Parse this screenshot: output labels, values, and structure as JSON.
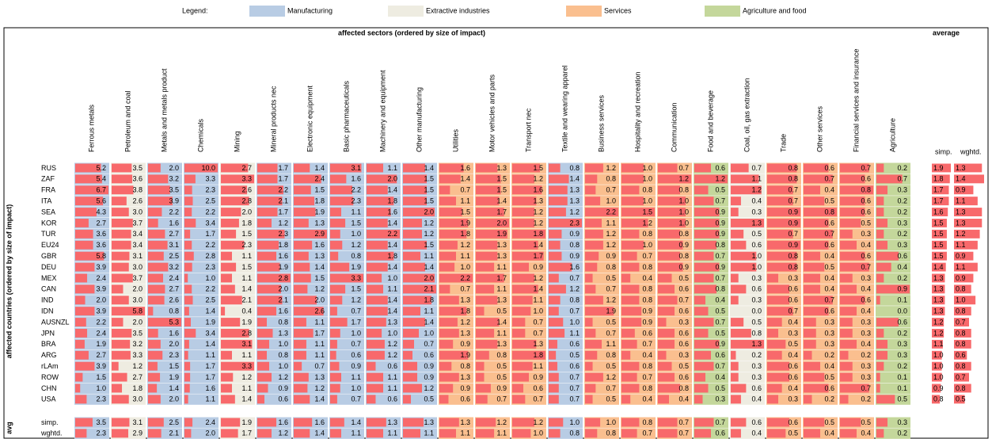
{
  "legend": {
    "title": "Legend:",
    "items": [
      {
        "label": "Manufacturing",
        "color": "#b8cce4"
      },
      {
        "label": "Extractive industries",
        "color": "#eeece1"
      },
      {
        "label": "Services",
        "color": "#fabf8f"
      },
      {
        "label": "Agriculture and food",
        "color": "#c4d79b"
      }
    ]
  },
  "header": "affected sectors (ordered by size of impact)",
  "average_header": "average",
  "row_axis_label": "affected countries (ordered by size of impact)",
  "avg_axis_label": "avg",
  "bar_color": "#f8696b",
  "columns": [
    {
      "label": "Ferrous metals",
      "color": "#b8cce4"
    },
    {
      "label": "Petroleum and coal",
      "color": "#eeece1"
    },
    {
      "label": "Metals and metals product",
      "color": "#b8cce4"
    },
    {
      "label": "Chemicals",
      "color": "#b8cce4"
    },
    {
      "label": "Mining",
      "color": "#eeece1"
    },
    {
      "label": "Mineral products nec",
      "color": "#b8cce4"
    },
    {
      "label": "Electronic equipment",
      "color": "#b8cce4"
    },
    {
      "label": "Basic pharmaceuticals",
      "color": "#b8cce4"
    },
    {
      "label": "Machinery and equipment",
      "color": "#b8cce4"
    },
    {
      "label": "Other manufacturing",
      "color": "#b8cce4"
    },
    {
      "label": "Utilities",
      "color": "#fabf8f"
    },
    {
      "label": "Motor vehicles and parts",
      "color": "#fabf8f"
    },
    {
      "label": "Transport nec",
      "color": "#fabf8f"
    },
    {
      "label": "Textile and wearing apparel",
      "color": "#b8cce4"
    },
    {
      "label": "Business services",
      "color": "#fabf8f"
    },
    {
      "label": "Hospitality and recreation",
      "color": "#fabf8f"
    },
    {
      "label": "Communication",
      "color": "#fabf8f"
    },
    {
      "label": "Food and beverage",
      "color": "#c4d79b"
    },
    {
      "label": "Coal, oil, gas extraction",
      "color": "#eeece1"
    },
    {
      "label": "Trade",
      "color": "#fabf8f"
    },
    {
      "label": "Other services",
      "color": "#fabf8f"
    },
    {
      "label": "Financial services and insurance",
      "color": "#fabf8f"
    },
    {
      "label": "Agriculture",
      "color": "#c4d79b"
    }
  ],
  "average_columns": [
    "simp.",
    "wghtd."
  ],
  "rows": [
    {
      "label": "RUS",
      "values": [
        "5.2",
        "3.5",
        "2.0",
        "10.0",
        "2.7",
        "1.7",
        "1.4",
        "3.1",
        "1.1",
        "1.4",
        "1.6",
        "1.3",
        "1.5",
        "0.8",
        "1.2",
        "1.0",
        "0.7",
        "0.6",
        "0.7",
        "0.8",
        "0.6",
        "0.7",
        "0.2"
      ],
      "average": [
        "1.9",
        "1.3"
      ]
    },
    {
      "label": "ZAF",
      "values": [
        "5.4",
        "3.6",
        "3.2",
        "3.3",
        "3.3",
        "1.7",
        "2.4",
        "1.6",
        "2.0",
        "1.5",
        "1.4",
        "1.5",
        "1.2",
        "1.4",
        "0.8",
        "1.0",
        "1.2",
        "1.2",
        "1.1",
        "0.8",
        "0.7",
        "0.6",
        "0.7"
      ],
      "average": [
        "1.8",
        "1.4"
      ]
    },
    {
      "label": "FRA",
      "values": [
        "6.7",
        "3.8",
        "3.5",
        "2.3",
        "2.6",
        "2.2",
        "1.5",
        "2.2",
        "1.4",
        "1.5",
        "0.7",
        "1.5",
        "1.6",
        "1.3",
        "0.7",
        "0.8",
        "0.8",
        "0.5",
        "1.2",
        "0.7",
        "0.4",
        "0.8",
        "0.3"
      ],
      "average": [
        "1.7",
        "0.9"
      ]
    },
    {
      "label": "ITA",
      "values": [
        "5.6",
        "2.6",
        "3.9",
        "2.5",
        "2.8",
        "2.1",
        "1.8",
        "2.3",
        "1.8",
        "1.5",
        "1.1",
        "1.4",
        "1.3",
        "1.3",
        "1.0",
        "1.0",
        "1.0",
        "0.7",
        "0.4",
        "0.7",
        "0.5",
        "0.6",
        "0.2"
      ],
      "average": [
        "1.7",
        "1.1"
      ]
    },
    {
      "label": "SEA",
      "values": [
        "4.3",
        "3.0",
        "2.2",
        "2.2",
        "2.0",
        "1.7",
        "1.9",
        "1.1",
        "1.6",
        "2.0",
        "1.5",
        "1.7",
        "1.2",
        "1.2",
        "2.2",
        "1.5",
        "1.0",
        "0.9",
        "0.3",
        "0.9",
        "0.8",
        "0.6",
        "0.2"
      ],
      "average": [
        "1.6",
        "1.3"
      ]
    },
    {
      "label": "KOR",
      "values": [
        "2.7",
        "3.7",
        "1.6",
        "3.4",
        "1.8",
        "1.2",
        "1.3",
        "1.5",
        "1.4",
        "1.2",
        "1.9",
        "2.0",
        "1.2",
        "2.3",
        "1.1",
        "1.2",
        "1.0",
        "0.9",
        "1.3",
        "0.9",
        "0.6",
        "0.5",
        "0.3"
      ],
      "average": [
        "1.5",
        "1.3"
      ]
    },
    {
      "label": "TUR",
      "values": [
        "3.6",
        "3.4",
        "2.7",
        "1.7",
        "1.5",
        "2.3",
        "2.9",
        "1.0",
        "2.2",
        "1.2",
        "1.8",
        "1.9",
        "1.8",
        "0.9",
        "1.2",
        "0.8",
        "0.8",
        "0.9",
        "0.5",
        "0.7",
        "0.7",
        "0.3",
        "0.2"
      ],
      "average": [
        "1.5",
        "1.2"
      ]
    },
    {
      "label": "EU24",
      "values": [
        "3.6",
        "3.4",
        "3.1",
        "2.2",
        "2.3",
        "1.8",
        "1.6",
        "1.2",
        "1.4",
        "1.5",
        "1.2",
        "1.3",
        "1.4",
        "0.8",
        "1.2",
        "1.0",
        "0.9",
        "0.8",
        "0.6",
        "0.9",
        "0.6",
        "0.4",
        "0.3"
      ],
      "average": [
        "1.5",
        "1.1"
      ]
    },
    {
      "label": "GBR",
      "values": [
        "5.8",
        "3.1",
        "2.5",
        "2.8",
        "1.1",
        "1.6",
        "1.3",
        "0.8",
        "1.8",
        "1.1",
        "1.1",
        "1.3",
        "1.7",
        "0.9",
        "0.9",
        "0.7",
        "0.8",
        "0.7",
        "1.0",
        "0.8",
        "0.4",
        "0.6",
        "0.6"
      ],
      "average": [
        "1.5",
        "0.9"
      ]
    },
    {
      "label": "DEU",
      "values": [
        "3.9",
        "3.0",
        "3.2",
        "2.3",
        "1.5",
        "1.9",
        "1.4",
        "1.9",
        "1.4",
        "1.4",
        "1.0",
        "1.1",
        "0.9",
        "1.6",
        "0.8",
        "0.8",
        "0.9",
        "0.9",
        "1.0",
        "0.8",
        "0.5",
        "0.7",
        "0.4"
      ],
      "average": [
        "1.4",
        "1.1"
      ]
    },
    {
      "label": "MEX",
      "values": [
        "2.4",
        "3.7",
        "2.4",
        "1.0",
        "1.1",
        "2.8",
        "1.5",
        "3.3",
        "1.0",
        "2.0",
        "2.2",
        "1.7",
        "1.2",
        "0.7",
        "0.5",
        "0.4",
        "0.5",
        "0.7",
        "0.3",
        "0.3",
        "0.4",
        "0.3",
        "0.2"
      ],
      "average": [
        "1.3",
        "0.9"
      ]
    },
    {
      "label": "CAN",
      "values": [
        "3.9",
        "2.0",
        "2.7",
        "2.2",
        "1.4",
        "2.0",
        "1.2",
        "1.5",
        "1.1",
        "2.1",
        "0.7",
        "1.1",
        "1.4",
        "1.2",
        "0.7",
        "0.8",
        "0.6",
        "0.8",
        "0.6",
        "0.6",
        "0.4",
        "0.4",
        "0.9"
      ],
      "average": [
        "1.3",
        "0.8"
      ]
    },
    {
      "label": "IND",
      "values": [
        "2.0",
        "3.0",
        "2.6",
        "2.5",
        "2.1",
        "2.1",
        "2.0",
        "1.2",
        "1.4",
        "1.8",
        "1.3",
        "1.3",
        "1.1",
        "0.8",
        "1.2",
        "0.8",
        "0.7",
        "0.4",
        "0.3",
        "0.6",
        "0.7",
        "0.6",
        "0.1"
      ],
      "average": [
        "1.3",
        "1.0"
      ]
    },
    {
      "label": "IDN",
      "values": [
        "3.9",
        "5.8",
        "0.8",
        "1.4",
        "0.4",
        "1.6",
        "2.6",
        "0.7",
        "1.4",
        "1.1",
        "1.8",
        "0.5",
        "1.0",
        "0.7",
        "1.9",
        "0.9",
        "0.6",
        "0.5",
        "0.0",
        "0.7",
        "0.6",
        "0.4",
        "0.0"
      ],
      "average": [
        "1.3",
        "0.8"
      ]
    },
    {
      "label": "AUSNZL",
      "values": [
        "2.2",
        "2.0",
        "5.3",
        "1.9",
        "1.9",
        "0.8",
        "1.1",
        "1.7",
        "1.3",
        "1.4",
        "1.2",
        "1.4",
        "0.7",
        "1.0",
        "0.5",
        "0.9",
        "0.3",
        "0.7",
        "0.5",
        "0.4",
        "0.3",
        "0.3",
        "0.6"
      ],
      "average": [
        "1.2",
        "0.7"
      ]
    },
    {
      "label": "JPN",
      "values": [
        "2.4",
        "3.5",
        "1.6",
        "3.4",
        "2.8",
        "1.3",
        "1.7",
        "1.0",
        "1.0",
        "1.0",
        "1.3",
        "1.1",
        "0.7",
        "1.1",
        "0.7",
        "0.6",
        "0.6",
        "0.5",
        "0.8",
        "0.3",
        "0.3",
        "0.3",
        "0.2"
      ],
      "average": [
        "1.2",
        "0.8"
      ]
    },
    {
      "label": "BRA",
      "values": [
        "1.9",
        "3.2",
        "2.0",
        "1.4",
        "3.1",
        "1.0",
        "1.1",
        "0.7",
        "1.2",
        "0.7",
        "0.9",
        "1.3",
        "1.3",
        "0.6",
        "1.1",
        "0.7",
        "0.6",
        "0.9",
        "1.3",
        "0.5",
        "0.3",
        "0.4",
        "0.3"
      ],
      "average": [
        "1.1",
        "0.8"
      ]
    },
    {
      "label": "ARG",
      "values": [
        "2.7",
        "3.3",
        "2.3",
        "1.1",
        "1.1",
        "0.8",
        "1.1",
        "0.6",
        "1.2",
        "0.6",
        "1.9",
        "0.8",
        "1.8",
        "0.5",
        "0.8",
        "0.4",
        "0.3",
        "0.6",
        "0.2",
        "0.4",
        "0.2",
        "0.2",
        "0.3"
      ],
      "average": [
        "1.0",
        "0.6"
      ]
    },
    {
      "label": "rLAm",
      "values": [
        "3.9",
        "1.2",
        "1.5",
        "1.7",
        "3.3",
        "1.0",
        "0.7",
        "0.9",
        "0.6",
        "0.9",
        "0.8",
        "0.5",
        "1.1",
        "0.6",
        "0.5",
        "0.8",
        "0.5",
        "0.7",
        "0.3",
        "0.6",
        "0.4",
        "0.3",
        "0.2"
      ],
      "average": [
        "1.0",
        "0.8"
      ]
    },
    {
      "label": "ROW",
      "values": [
        "1.5",
        "2.7",
        "1.9",
        "1.7",
        "1.2",
        "1.2",
        "1.3",
        "1.1",
        "1.1",
        "0.9",
        "1.3",
        "0.5",
        "0.9",
        "0.7",
        "1.2",
        "0.7",
        "0.6",
        "0.4",
        "0.3",
        "0.6",
        "0.5",
        "0.3",
        "0.1"
      ],
      "average": [
        "1.0",
        "0.7"
      ]
    },
    {
      "label": "CHN",
      "values": [
        "1.0",
        "1.8",
        "1.4",
        "1.6",
        "1.1",
        "0.9",
        "1.2",
        "1.0",
        "1.1",
        "1.2",
        "0.9",
        "0.9",
        "0.6",
        "0.7",
        "0.7",
        "0.8",
        "0.8",
        "0.5",
        "0.6",
        "0.4",
        "0.6",
        "0.7",
        "0.1"
      ],
      "average": [
        "0.9",
        "0.8"
      ]
    },
    {
      "label": "USA",
      "values": [
        "2.3",
        "3.0",
        "2.0",
        "1.1",
        "1.4",
        "0.6",
        "1.4",
        "0.7",
        "0.6",
        "0.5",
        "0.6",
        "0.7",
        "0.7",
        "0.7",
        "0.5",
        "0.4",
        "0.4",
        "0.3",
        "0.4",
        "0.3",
        "0.2",
        "0.2",
        "0.5"
      ],
      "average": [
        "0.8",
        "0.5"
      ]
    }
  ],
  "avg_rows": [
    {
      "label": "simp.",
      "values": [
        "3.5",
        "3.1",
        "2.5",
        "2.4",
        "1.9",
        "1.6",
        "1.6",
        "1.4",
        "1.3",
        "1.3",
        "1.3",
        "1.2",
        "1.2",
        "1.0",
        "1.0",
        "0.8",
        "0.7",
        "0.7",
        "0.6",
        "0.6",
        "0.5",
        "0.5",
        "0.3"
      ]
    },
    {
      "label": "wghtd.",
      "values": [
        "2.3",
        "2.9",
        "2.1",
        "2.0",
        "1.7",
        "1.2",
        "1.4",
        "1.1",
        "1.1",
        "1.1",
        "1.1",
        "1.1",
        "1.0",
        "0.8",
        "0.8",
        "0.7",
        "0.7",
        "0.6",
        "0.4",
        "0.5",
        "0.4",
        "0.4",
        "0.2"
      ]
    }
  ]
}
